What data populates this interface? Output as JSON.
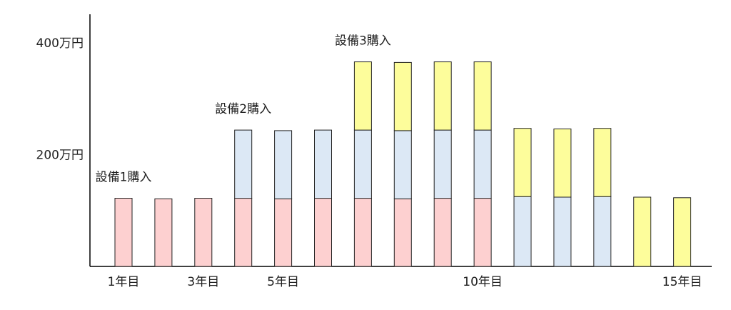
{
  "chart_data": {
    "type": "bar",
    "stacked": true,
    "unit": "万円",
    "categories": [
      "1",
      "2",
      "3",
      "4",
      "5",
      "6",
      "7",
      "8",
      "9",
      "10",
      "11",
      "12",
      "13",
      "14",
      "15"
    ],
    "series": [
      {
        "color": "#fdd0d0",
        "values": [
          122,
          121,
          122,
          122,
          121,
          122,
          122,
          121,
          122,
          122,
          0,
          0,
          0,
          0,
          0
        ]
      },
      {
        "color": "#dce8f5",
        "values": [
          0,
          0,
          0,
          122,
          122,
          122,
          122,
          122,
          122,
          122,
          125,
          124,
          125,
          0,
          0
        ]
      },
      {
        "color": "#fdfd9b",
        "values": [
          0,
          0,
          0,
          0,
          0,
          0,
          122,
          122,
          122,
          122,
          122,
          122,
          122,
          124,
          123
        ]
      }
    ],
    "y_ticks": [
      {
        "value": 200,
        "label": "200万円"
      },
      {
        "value": 400,
        "label": "400万円"
      }
    ],
    "x_ticks": [
      {
        "index": 0,
        "label": "1年目"
      },
      {
        "index": 2,
        "label": "3年目"
      },
      {
        "index": 4,
        "label": "5年目"
      },
      {
        "index": 9,
        "label": "10年目"
      },
      {
        "index": 14,
        "label": "15年目"
      }
    ],
    "annotations": [
      {
        "index": 0,
        "text": "設備1購入"
      },
      {
        "index": 3,
        "text": "設備2購入"
      },
      {
        "index": 6,
        "text": "設備3購入"
      }
    ],
    "ylim": [
      0,
      400
    ],
    "grid": false,
    "legend": "none"
  }
}
